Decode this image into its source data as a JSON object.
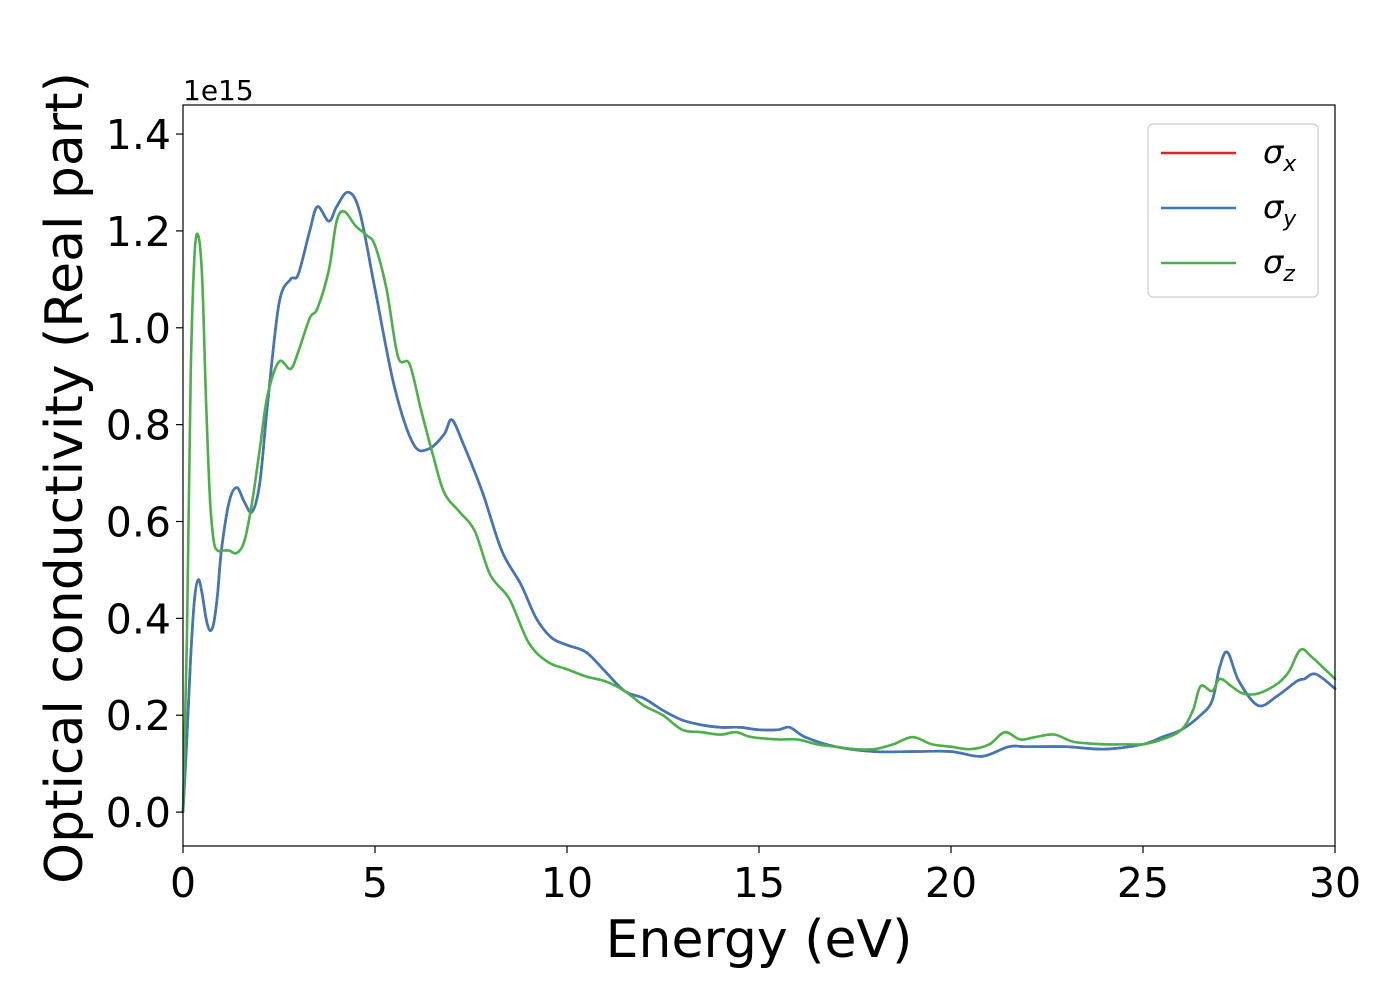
{
  "chart_data": {
    "type": "line",
    "title": "",
    "xlabel": "Energy (eV)",
    "ylabel": "Optical conductivity (Real part)",
    "y_scale_label": "1e15",
    "xlim": [
      0,
      30
    ],
    "ylim": [
      -0.07,
      1.46
    ],
    "x_ticks": [
      0,
      5,
      10,
      15,
      20,
      25,
      30
    ],
    "x_tick_labels": [
      "0",
      "5",
      "10",
      "15",
      "20",
      "25",
      "30"
    ],
    "y_ticks": [
      0.0,
      0.2,
      0.4,
      0.6,
      0.8,
      1.0,
      1.2,
      1.4
    ],
    "y_tick_labels": [
      "0.0",
      "0.2",
      "0.4",
      "0.6",
      "0.8",
      "1.0",
      "1.2",
      "1.4"
    ],
    "grid": false,
    "legend_position": "top-right",
    "legend": [
      "σx",
      "σy",
      "σz"
    ],
    "series": [
      {
        "name": "σx",
        "color": "#d62728",
        "x": [
          0,
          0.1,
          0.2,
          0.3,
          0.4,
          0.5,
          0.6,
          0.7,
          0.8,
          0.9,
          1.0,
          1.2,
          1.4,
          1.6,
          1.8,
          2.0,
          2.2,
          2.5,
          2.8,
          3.0,
          3.3,
          3.5,
          3.8,
          4.0,
          4.3,
          4.6,
          5.0,
          5.5,
          6.0,
          6.4,
          6.8,
          7.0,
          7.3,
          7.8,
          8.3,
          8.8,
          9.2,
          9.6,
          10.0,
          10.5,
          11.0,
          11.5,
          12.0,
          12.5,
          13.0,
          13.5,
          14.0,
          14.5,
          15.0,
          15.5,
          15.8,
          16.2,
          17.0,
          18.0,
          19.0,
          20.0,
          20.8,
          21.5,
          22.0,
          23.0,
          24.0,
          25.0,
          25.5,
          26.0,
          26.5,
          26.8,
          27.0,
          27.2,
          27.5,
          28.0,
          28.5,
          29.0,
          29.2,
          29.5,
          30.0
        ],
        "y": [
          0.0,
          0.15,
          0.32,
          0.44,
          0.48,
          0.45,
          0.4,
          0.375,
          0.39,
          0.45,
          0.54,
          0.64,
          0.67,
          0.64,
          0.62,
          0.68,
          0.84,
          1.05,
          1.1,
          1.11,
          1.2,
          1.25,
          1.22,
          1.25,
          1.28,
          1.24,
          1.08,
          0.88,
          0.76,
          0.75,
          0.78,
          0.81,
          0.76,
          0.66,
          0.54,
          0.47,
          0.4,
          0.36,
          0.345,
          0.33,
          0.29,
          0.25,
          0.235,
          0.21,
          0.19,
          0.18,
          0.175,
          0.175,
          0.17,
          0.17,
          0.175,
          0.155,
          0.135,
          0.125,
          0.125,
          0.125,
          0.115,
          0.135,
          0.135,
          0.135,
          0.13,
          0.14,
          0.155,
          0.17,
          0.2,
          0.23,
          0.3,
          0.33,
          0.27,
          0.22,
          0.24,
          0.27,
          0.275,
          0.285,
          0.255
        ]
      },
      {
        "name": "σy",
        "color": "#3f78b8",
        "x": [
          0,
          0.1,
          0.2,
          0.3,
          0.4,
          0.5,
          0.6,
          0.7,
          0.8,
          0.9,
          1.0,
          1.2,
          1.4,
          1.6,
          1.8,
          2.0,
          2.2,
          2.5,
          2.8,
          3.0,
          3.3,
          3.5,
          3.8,
          4.0,
          4.3,
          4.6,
          5.0,
          5.5,
          6.0,
          6.4,
          6.8,
          7.0,
          7.3,
          7.8,
          8.3,
          8.8,
          9.2,
          9.6,
          10.0,
          10.5,
          11.0,
          11.5,
          12.0,
          12.5,
          13.0,
          13.5,
          14.0,
          14.5,
          15.0,
          15.5,
          15.8,
          16.2,
          17.0,
          18.0,
          19.0,
          20.0,
          20.8,
          21.5,
          22.0,
          23.0,
          24.0,
          25.0,
          25.5,
          26.0,
          26.5,
          26.8,
          27.0,
          27.2,
          27.5,
          28.0,
          28.5,
          29.0,
          29.2,
          29.5,
          30.0
        ],
        "y": [
          0.0,
          0.15,
          0.32,
          0.44,
          0.48,
          0.45,
          0.4,
          0.375,
          0.39,
          0.45,
          0.54,
          0.64,
          0.67,
          0.64,
          0.62,
          0.68,
          0.84,
          1.05,
          1.1,
          1.11,
          1.2,
          1.25,
          1.22,
          1.25,
          1.28,
          1.24,
          1.08,
          0.88,
          0.76,
          0.75,
          0.78,
          0.81,
          0.76,
          0.66,
          0.54,
          0.47,
          0.4,
          0.36,
          0.345,
          0.33,
          0.29,
          0.25,
          0.235,
          0.21,
          0.19,
          0.18,
          0.175,
          0.175,
          0.17,
          0.17,
          0.175,
          0.155,
          0.135,
          0.125,
          0.125,
          0.125,
          0.115,
          0.135,
          0.135,
          0.135,
          0.13,
          0.14,
          0.155,
          0.17,
          0.2,
          0.23,
          0.3,
          0.33,
          0.27,
          0.22,
          0.24,
          0.27,
          0.275,
          0.285,
          0.255
        ]
      },
      {
        "name": "σz",
        "color": "#4daf4a",
        "x": [
          0,
          0.1,
          0.2,
          0.3,
          0.4,
          0.5,
          0.6,
          0.7,
          0.8,
          0.9,
          1.0,
          1.2,
          1.4,
          1.6,
          1.8,
          2.0,
          2.2,
          2.5,
          2.8,
          3.0,
          3.3,
          3.5,
          3.8,
          4.0,
          4.2,
          4.5,
          4.8,
          5.0,
          5.3,
          5.6,
          5.9,
          6.2,
          6.5,
          6.8,
          7.2,
          7.6,
          8.0,
          8.5,
          9.0,
          9.5,
          10.0,
          10.5,
          11.0,
          11.5,
          12.0,
          12.5,
          13.0,
          13.5,
          14.0,
          14.4,
          14.8,
          15.5,
          16.0,
          16.5,
          17.0,
          17.5,
          18.0,
          18.5,
          19.0,
          19.5,
          20.0,
          20.5,
          21.0,
          21.4,
          21.8,
          22.2,
          22.7,
          23.2,
          24.0,
          24.6,
          25.0,
          25.5,
          26.0,
          26.3,
          26.5,
          26.8,
          27.0,
          27.3,
          27.6,
          28.0,
          28.5,
          28.8,
          29.1,
          29.4,
          30.0
        ],
        "y": [
          0.0,
          0.35,
          0.9,
          1.15,
          1.19,
          1.1,
          0.85,
          0.65,
          0.56,
          0.54,
          0.54,
          0.54,
          0.535,
          0.56,
          0.64,
          0.75,
          0.86,
          0.93,
          0.915,
          0.95,
          1.02,
          1.04,
          1.12,
          1.22,
          1.24,
          1.21,
          1.19,
          1.17,
          1.08,
          0.94,
          0.925,
          0.83,
          0.74,
          0.66,
          0.62,
          0.58,
          0.49,
          0.44,
          0.35,
          0.31,
          0.295,
          0.28,
          0.27,
          0.25,
          0.22,
          0.2,
          0.17,
          0.165,
          0.16,
          0.165,
          0.155,
          0.15,
          0.15,
          0.14,
          0.135,
          0.13,
          0.13,
          0.14,
          0.155,
          0.14,
          0.135,
          0.13,
          0.14,
          0.165,
          0.15,
          0.155,
          0.16,
          0.145,
          0.14,
          0.14,
          0.14,
          0.15,
          0.17,
          0.21,
          0.26,
          0.25,
          0.275,
          0.26,
          0.245,
          0.245,
          0.265,
          0.29,
          0.335,
          0.32,
          0.275
        ]
      }
    ]
  }
}
